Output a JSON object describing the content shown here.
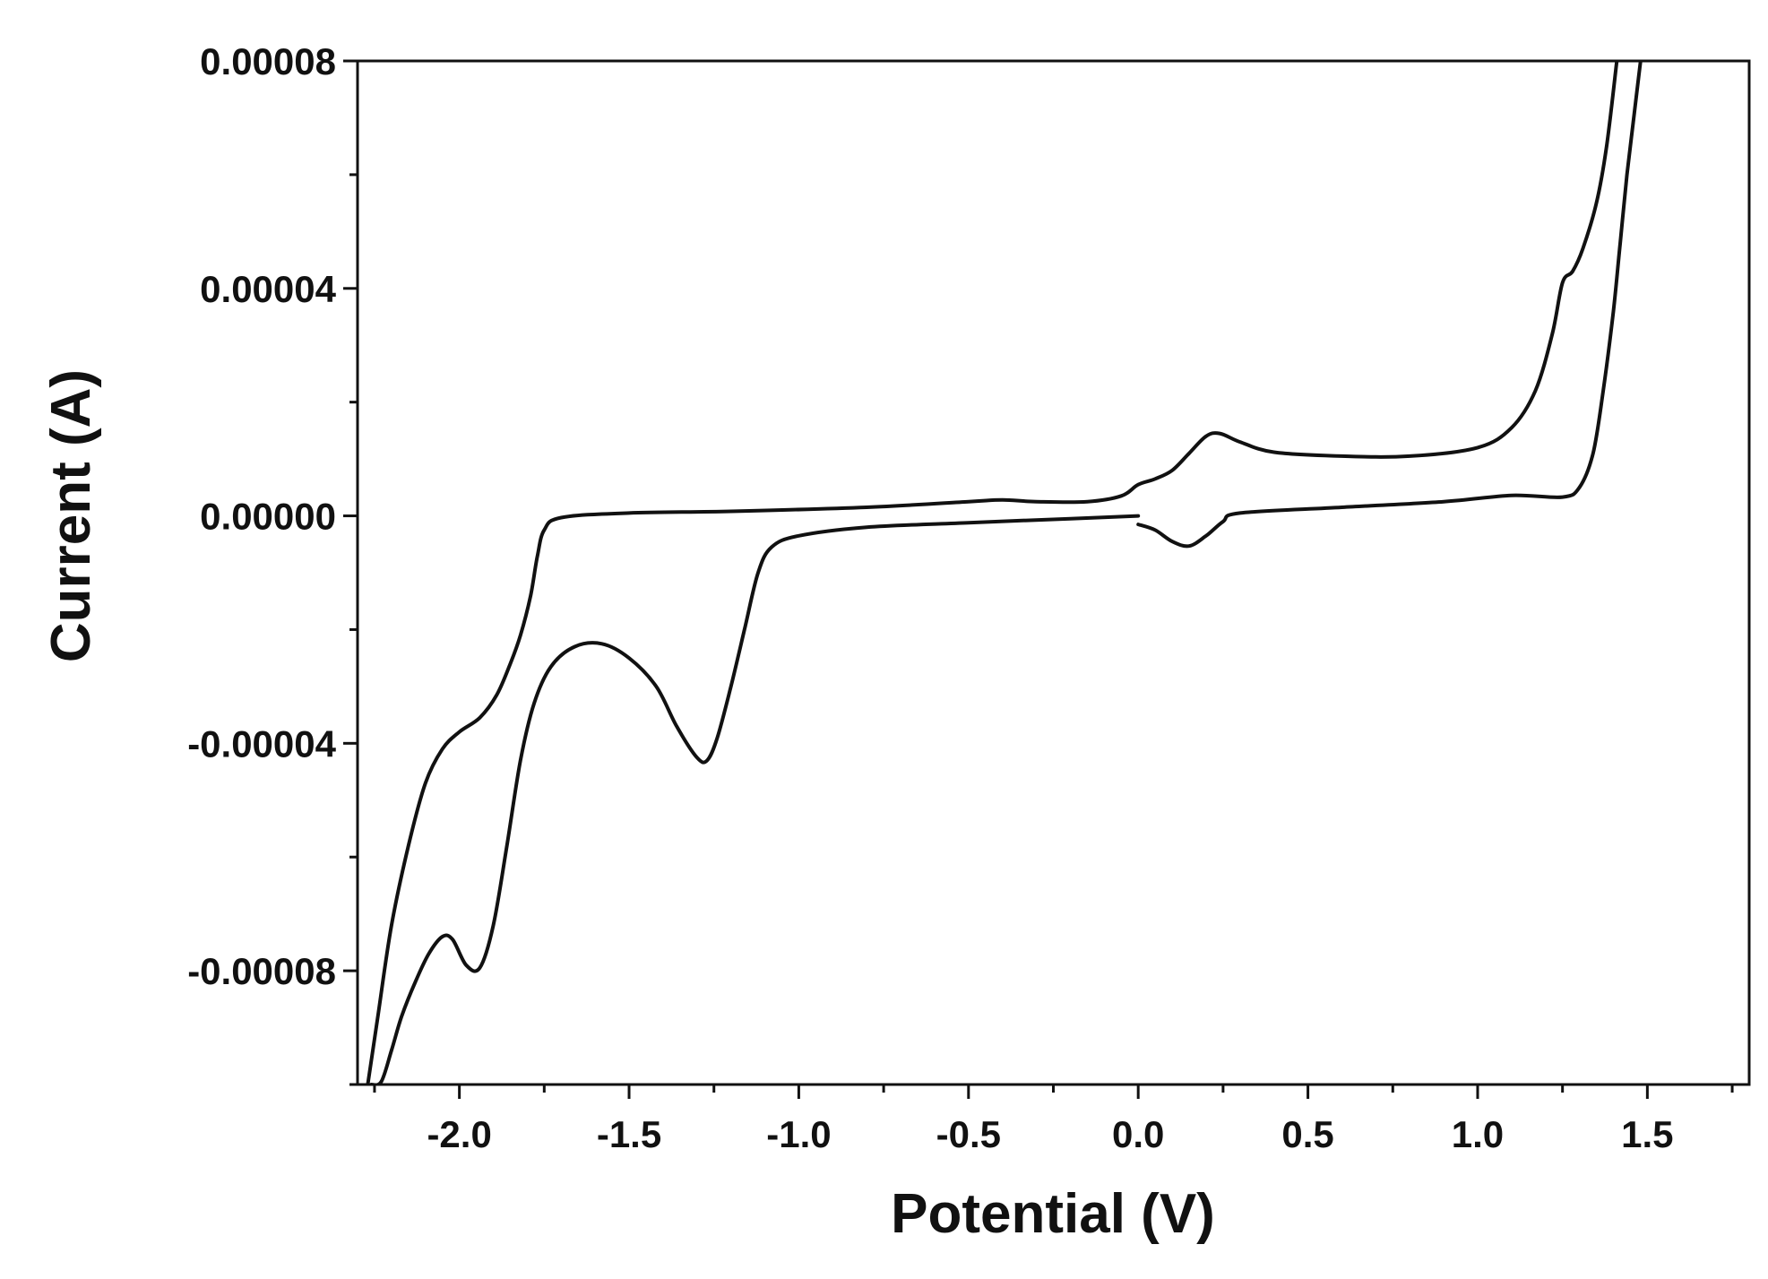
{
  "chart_data": {
    "type": "line",
    "title": "",
    "xlabel": "Potential  (V)",
    "ylabel": "Current  (A)",
    "xlim": [
      -2.3,
      1.8
    ],
    "ylim": [
      -0.0001,
      8e-05
    ],
    "grid": false,
    "legend": "none",
    "x_ticks": [
      {
        "value": -2.0,
        "label": "-2.0"
      },
      {
        "value": -1.5,
        "label": "-1.5"
      },
      {
        "value": -1.0,
        "label": "-1.0"
      },
      {
        "value": -0.5,
        "label": "-0.5"
      },
      {
        "value": 0.0,
        "label": "0.0"
      },
      {
        "value": 0.5,
        "label": "0.5"
      },
      {
        "value": 1.0,
        "label": "1.0"
      },
      {
        "value": 1.5,
        "label": "1.5"
      }
    ],
    "y_ticks": [
      {
        "value": 8e-05,
        "label": "0.00008"
      },
      {
        "value": 4e-05,
        "label": "0.00004"
      },
      {
        "value": 0.0,
        "label": "0.00000"
      },
      {
        "value": -4e-05,
        "label": "-0.00004"
      },
      {
        "value": -8e-05,
        "label": "-0.00008"
      }
    ],
    "line_color": "#111111",
    "series": [
      {
        "points": [
          [
            0.0,
            0.0
          ],
          [
            -0.2,
            -5e-07
          ],
          [
            -0.5,
            -1.2e-06
          ],
          [
            -0.8,
            -2e-06
          ],
          [
            -1.0,
            -3.5e-06
          ],
          [
            -1.08,
            -5.5e-06
          ],
          [
            -1.12,
            -1e-05
          ],
          [
            -1.16,
            -2e-05
          ],
          [
            -1.2,
            -3e-05
          ],
          [
            -1.24,
            -3.9e-05
          ],
          [
            -1.27,
            -4.3e-05
          ],
          [
            -1.3,
            -4.25e-05
          ],
          [
            -1.36,
            -3.7e-05
          ],
          [
            -1.42,
            -3e-05
          ],
          [
            -1.5,
            -2.5e-05
          ],
          [
            -1.58,
            -2.25e-05
          ],
          [
            -1.66,
            -2.3e-05
          ],
          [
            -1.73,
            -2.65e-05
          ],
          [
            -1.78,
            -3.3e-05
          ],
          [
            -1.82,
            -4.3e-05
          ],
          [
            -1.86,
            -5.8e-05
          ],
          [
            -1.9,
            -7.2e-05
          ],
          [
            -1.94,
            -7.95e-05
          ],
          [
            -1.98,
            -7.9e-05
          ],
          [
            -2.02,
            -7.45e-05
          ],
          [
            -2.05,
            -7.4e-05
          ],
          [
            -2.09,
            -7.7e-05
          ],
          [
            -2.13,
            -8.2e-05
          ],
          [
            -2.17,
            -8.8e-05
          ],
          [
            -2.2,
            -9.4e-05
          ],
          [
            -2.23,
            -9.95e-05
          ],
          [
            -2.26,
            -0.0001
          ]
        ]
      },
      {
        "points": [
          [
            -2.27,
            -0.0001
          ],
          [
            -2.24,
            -8.8e-05
          ],
          [
            -2.2,
            -7.2e-05
          ],
          [
            -2.15,
            -5.8e-05
          ],
          [
            -2.1,
            -4.7e-05
          ],
          [
            -2.05,
            -4.1e-05
          ],
          [
            -2.0,
            -3.8e-05
          ],
          [
            -1.94,
            -3.55e-05
          ],
          [
            -1.89,
            -3.15e-05
          ],
          [
            -1.85,
            -2.6e-05
          ],
          [
            -1.82,
            -2.1e-05
          ],
          [
            -1.79,
            -1.4e-05
          ],
          [
            -1.77,
            -7e-06
          ],
          [
            -1.75,
            -2.5e-06
          ],
          [
            -1.7,
            -3e-07
          ],
          [
            -1.5,
            5e-07
          ],
          [
            -1.2,
            8e-07
          ],
          [
            -0.8,
            1.5e-06
          ],
          [
            -0.5,
            2.5e-06
          ],
          [
            -0.4,
            2.8e-06
          ],
          [
            -0.3,
            2.5e-06
          ],
          [
            -0.15,
            2.5e-06
          ],
          [
            -0.05,
            3.5e-06
          ],
          [
            0.0,
            5.5e-06
          ],
          [
            0.05,
            6.5e-06
          ],
          [
            0.1,
            8e-06
          ],
          [
            0.15,
            1.1e-05
          ],
          [
            0.2,
            1.4e-05
          ],
          [
            0.24,
            1.45e-05
          ],
          [
            0.3,
            1.3e-05
          ],
          [
            0.4,
            1.12e-05
          ],
          [
            0.6,
            1.05e-05
          ],
          [
            0.8,
            1.05e-05
          ],
          [
            1.0,
            1.2e-05
          ],
          [
            1.1,
            1.55e-05
          ],
          [
            1.17,
            2.2e-05
          ],
          [
            1.22,
            3.2e-05
          ],
          [
            1.25,
            4.1e-05
          ],
          [
            1.28,
            4.3e-05
          ],
          [
            1.31,
            4.7e-05
          ],
          [
            1.35,
            5.5e-05
          ],
          [
            1.38,
            6.5e-05
          ],
          [
            1.41,
            8e-05
          ]
        ]
      },
      {
        "points": [
          [
            1.48,
            8e-05
          ],
          [
            1.46,
            7e-05
          ],
          [
            1.44,
            6e-05
          ],
          [
            1.42,
            4.8e-05
          ],
          [
            1.4,
            3.6e-05
          ],
          [
            1.37,
            2.2e-05
          ],
          [
            1.34,
            1.1e-05
          ],
          [
            1.3,
            5e-06
          ],
          [
            1.25,
            3.3e-06
          ],
          [
            1.1,
            3.6e-06
          ],
          [
            0.9,
            2.5e-06
          ],
          [
            0.6,
            1.5e-06
          ],
          [
            0.3,
            5e-07
          ],
          [
            0.25,
            -1e-06
          ],
          [
            0.2,
            -3.5e-06
          ],
          [
            0.15,
            -5.3e-06
          ],
          [
            0.1,
            -4.5e-06
          ],
          [
            0.05,
            -2.5e-06
          ],
          [
            0.0,
            -1.5e-06
          ]
        ]
      }
    ]
  }
}
